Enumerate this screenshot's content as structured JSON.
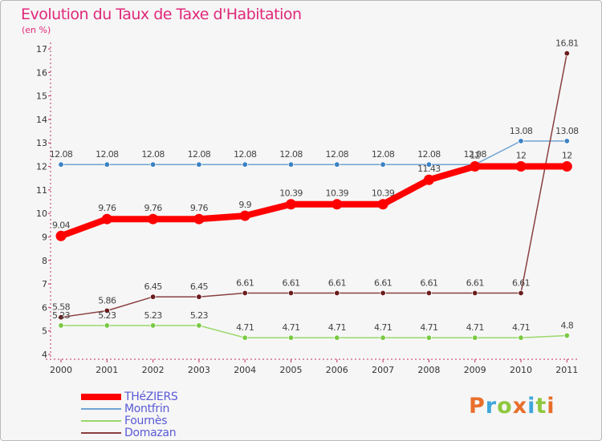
{
  "title": "Evolution du Taux de Taxe d'Habitation",
  "unit": "(en %)",
  "logo": {
    "letters": [
      {
        "ch": "P",
        "color": "#e86f2b"
      },
      {
        "ch": "r",
        "color": "#3fa6dd"
      },
      {
        "ch": "o",
        "color": "#8fc73e"
      },
      {
        "ch": "x",
        "color": "#e86f2b"
      },
      {
        "ch": "i",
        "color": "#3fa6dd"
      },
      {
        "ch": "t",
        "color": "#8fc73e"
      },
      {
        "ch": "i",
        "color": "#e86f2b"
      }
    ]
  },
  "chart_data": {
    "type": "line",
    "title": "Evolution du Taux de Taxe d'Habitation",
    "ylabel": "(en %)",
    "xlabel": "",
    "x": [
      "2000",
      "2001",
      "2002",
      "2003",
      "2004",
      "2005",
      "2006",
      "2007",
      "2008",
      "2009",
      "2010",
      "2011"
    ],
    "ylim": [
      4,
      17
    ],
    "yticks": [
      4,
      5,
      6,
      7,
      8,
      9,
      10,
      11,
      12,
      13,
      14,
      15,
      16,
      17
    ],
    "grid": false,
    "series": [
      {
        "name": "Montfrin",
        "color": "#6fa3d4",
        "marker": "#3b82c4",
        "width": "thin",
        "values": [
          12.08,
          12.08,
          12.08,
          12.08,
          12.08,
          12.08,
          12.08,
          12.08,
          12.08,
          12.08,
          13.08,
          13.08
        ],
        "labels": [
          "12.08",
          "12.08",
          "12.08",
          "12.08",
          "12.08",
          "12.08",
          "12.08",
          "12.08",
          "12.08",
          "12.08",
          "13.08",
          "13.08"
        ]
      },
      {
        "name": "Fournès",
        "color": "#9ad86a",
        "marker": "#7ac943",
        "width": "thin",
        "values": [
          5.23,
          5.23,
          5.23,
          5.23,
          4.71,
          4.71,
          4.71,
          4.71,
          4.71,
          4.71,
          4.71,
          4.8
        ],
        "labels": [
          "5.23",
          "5.23",
          "5.23",
          "5.23",
          "4.71",
          "4.71",
          "4.71",
          "4.71",
          "4.71",
          "4.71",
          "4.71",
          "4.8"
        ]
      },
      {
        "name": "Domazan",
        "color": "#8a3f3f",
        "marker": "#6b1c1c",
        "width": "thin",
        "values": [
          5.58,
          5.86,
          6.45,
          6.45,
          6.61,
          6.61,
          6.61,
          6.61,
          6.61,
          6.61,
          6.61,
          16.81
        ],
        "labels": [
          "5.58",
          "5.86",
          "6.45",
          "6.45",
          "6.61",
          "6.61",
          "6.61",
          "6.61",
          "6.61",
          "6.61",
          "6.61",
          "16.81"
        ]
      },
      {
        "name": "THéZIERS",
        "color": "#ff0000",
        "marker": "#ff0000",
        "width": "thick",
        "values": [
          9.04,
          9.76,
          9.76,
          9.76,
          9.9,
          10.39,
          10.39,
          10.39,
          11.43,
          12,
          12,
          12
        ],
        "labels": [
          "9.04",
          "9.76",
          "9.76",
          "9.76",
          "9.9",
          "10.39",
          "10.39",
          "10.39",
          "11.43",
          "12",
          "12",
          "12"
        ]
      }
    ],
    "legend": [
      "THéZIERS",
      "Montfrin",
      "Fournès",
      "Domazan"
    ],
    "legend_position": "bottom-left"
  }
}
